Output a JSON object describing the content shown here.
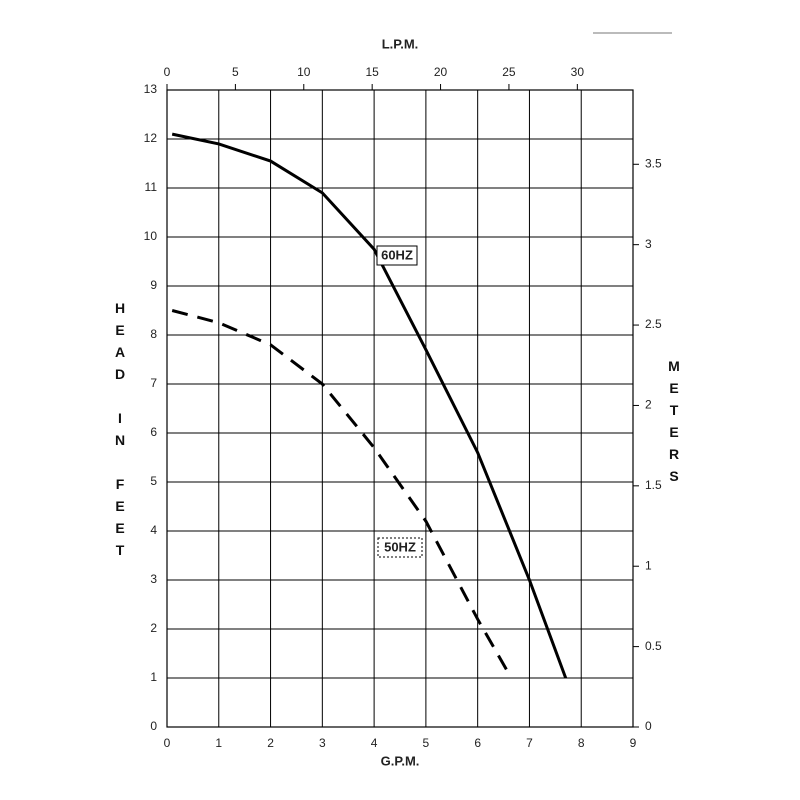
{
  "chart_data": {
    "type": "line",
    "x_label": "G.P.M.",
    "x2_label": "L.P.M.",
    "y_label": "HEAD IN FEET",
    "y2_label": "METERS",
    "series": [
      {
        "name": "60HZ",
        "color": "#000000",
        "dash": false,
        "x": [
          0.1,
          1,
          2,
          3,
          4,
          5,
          6,
          7,
          7.7
        ],
        "values": [
          12.1,
          11.9,
          11.55,
          10.9,
          9.75,
          7.7,
          5.6,
          3.0,
          1.0
        ]
      },
      {
        "name": "50HZ",
        "color": "#000000",
        "dash": true,
        "x": [
          0.1,
          1,
          2,
          3,
          4,
          5,
          6,
          6.65
        ],
        "values": [
          8.5,
          8.25,
          7.8,
          7.0,
          5.7,
          4.2,
          2.2,
          1.0
        ]
      }
    ],
    "xlim": [
      0,
      9
    ],
    "xticks": [
      0,
      1,
      2,
      3,
      4,
      5,
      6,
      7,
      8,
      9
    ],
    "x2lim": [
      0,
      34.07
    ],
    "x2ticks": [
      0,
      5,
      10,
      15,
      20,
      25,
      30
    ],
    "ylim": [
      0,
      13
    ],
    "yticks": [
      0,
      1,
      2,
      3,
      4,
      5,
      6,
      7,
      8,
      9,
      10,
      11,
      12,
      13
    ],
    "y2lim": [
      0,
      3.962
    ],
    "y2ticks": [
      0,
      0.5,
      1,
      1.5,
      2,
      2.5,
      3,
      3.5
    ],
    "grid": true
  }
}
